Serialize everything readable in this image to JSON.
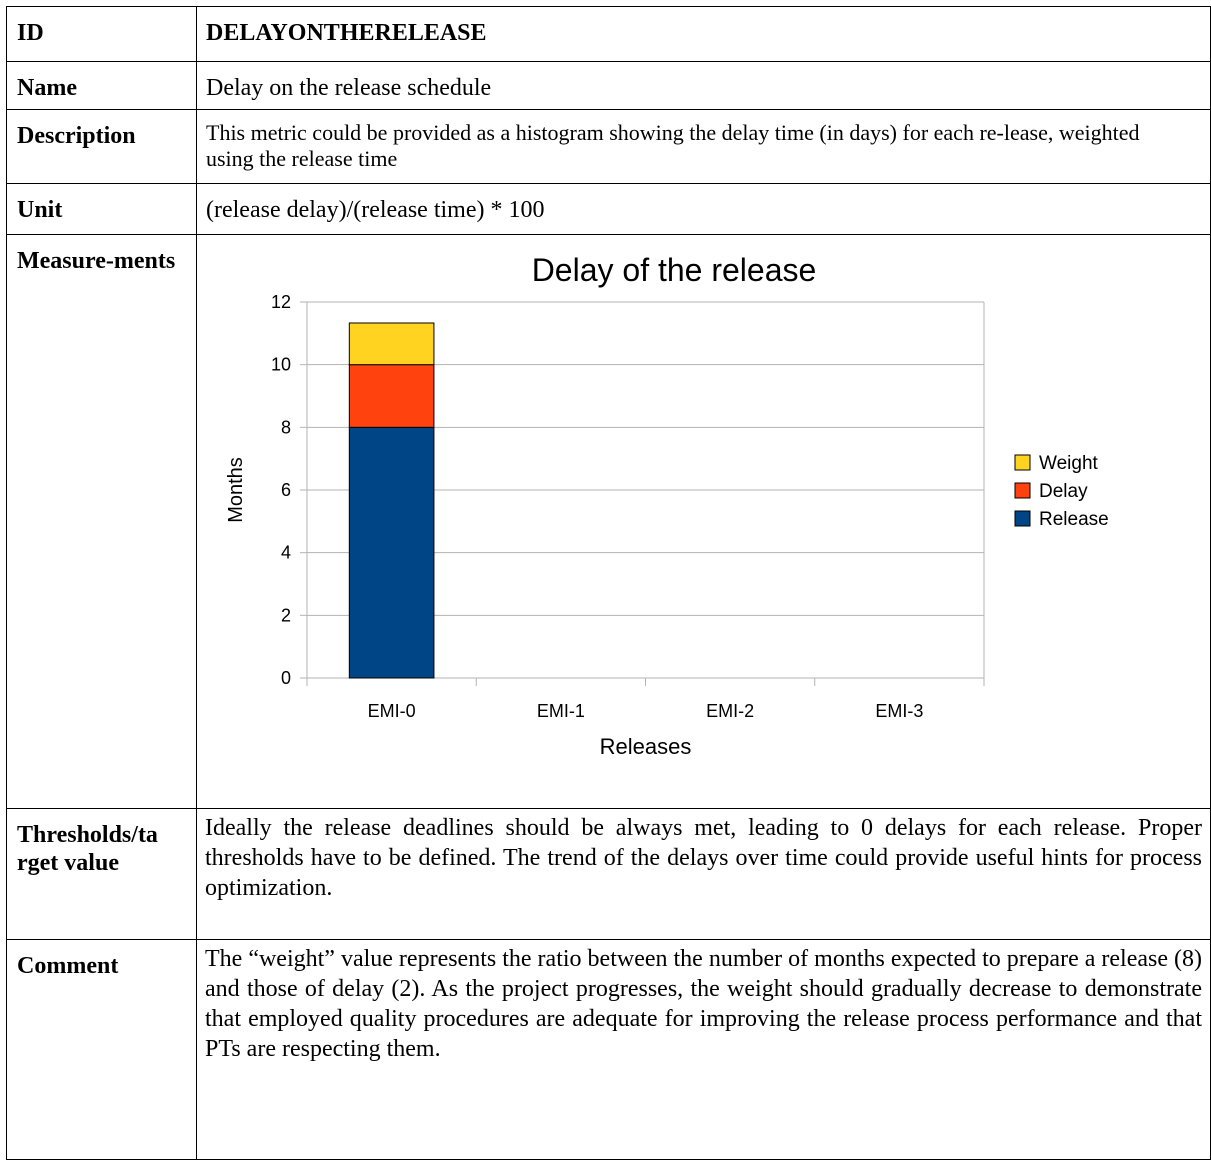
{
  "rows": {
    "id": {
      "label": "ID",
      "value": "DELAYONTHERELEASE"
    },
    "name": {
      "label": "Name",
      "value": "Delay on the release schedule"
    },
    "description": {
      "label": "Description",
      "value": "This metric could be provided as a histogram showing the delay time (in days) for each re-lease, weighted using the release time"
    },
    "unit": {
      "label": "Unit",
      "value": "(release delay)/(release time) * 100"
    },
    "measurements": {
      "label": "Measure-ments"
    },
    "thresholds": {
      "label": "Thresholds/ta rget value",
      "value": "Ideally the release deadlines should be always met, leading to 0 delays for each release. Proper thresholds have to be defined. The trend of the delays over time could provide useful hints for process optimization."
    },
    "comment": {
      "label": "Comment",
      "value": "The “weight” value represents the ratio between the number of months expected to prepare a release (8) and those of delay (2). As the project progresses, the weight should gradually decrease to demonstrate that employed quality procedures are adequate for improving the release process performance and that PTs are respecting them."
    }
  },
  "chart_data": {
    "type": "bar",
    "stacked": true,
    "title": "Delay of the release",
    "xlabel": "Releases",
    "ylabel": "Months",
    "categories": [
      "EMI-0",
      "EMI-1",
      "EMI-2",
      "EMI-3"
    ],
    "ylim": [
      0,
      12
    ],
    "yticks": [
      0,
      2,
      4,
      6,
      8,
      10,
      12
    ],
    "grid": true,
    "legend_position": "right",
    "series": [
      {
        "name": "Release",
        "color": "#004586",
        "values": [
          8,
          0,
          0,
          0
        ]
      },
      {
        "name": "Delay",
        "color": "#ff420e",
        "values": [
          2,
          0,
          0,
          0
        ]
      },
      {
        "name": "Weight",
        "color": "#ffd320",
        "values": [
          1.33,
          0,
          0,
          0
        ]
      }
    ],
    "legend_order": [
      "Weight",
      "Delay",
      "Release"
    ]
  }
}
